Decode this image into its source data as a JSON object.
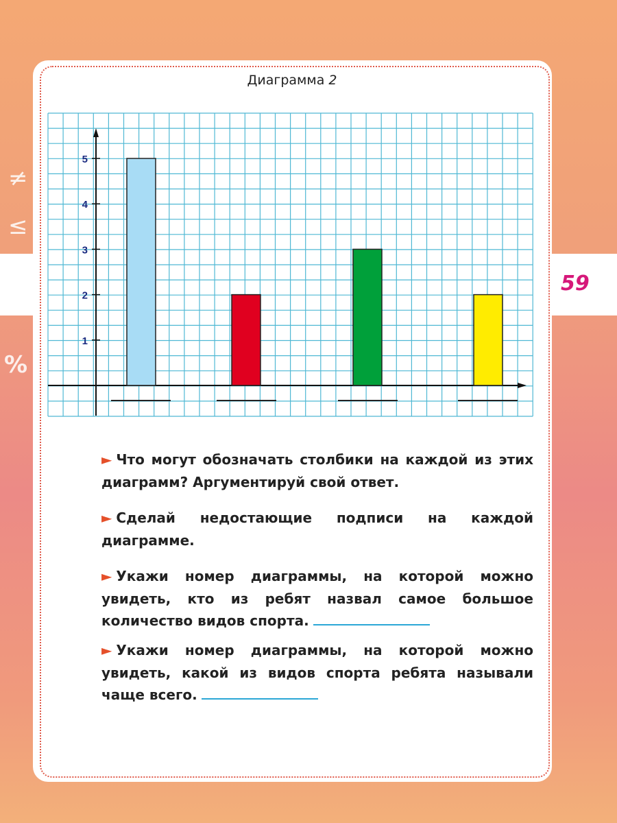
{
  "page_number": "59",
  "chart_data": {
    "type": "bar",
    "title": "Диаграмма",
    "title_number": "2",
    "categories": [
      "",
      "",
      "",
      ""
    ],
    "values": [
      5,
      2,
      3,
      2
    ],
    "colors": [
      "#a8dcf5",
      "#e0001f",
      "#00a03a",
      "#ffec00"
    ],
    "yticks": [
      "1",
      "2",
      "3",
      "4",
      "5"
    ],
    "ylim": [
      0,
      5
    ],
    "grid": true,
    "grid_color": "#4fb8d4",
    "axis_label_color": "#1a2a80"
  },
  "questions": [
    {
      "text": "Что могут обозначать столбики на каждой из этих диаграмм? Аргументируй свой ответ.",
      "has_blank": false
    },
    {
      "text": "Сделай недостающие подписи на каждой диаграмме.",
      "has_blank": false
    },
    {
      "text": "Укажи номер диаграммы, на которой можно увидеть, кто из ребят назвал самое большое количество видов спорта.",
      "has_blank": true
    },
    {
      "text": "Укажи номер диаграммы, на которой можно увидеть, какой из видов спорта ребята называли чаще всего.",
      "has_blank": true
    }
  ],
  "decorations": {
    "left_symbols": [
      "≠",
      "≤",
      "%"
    ],
    "marker": "►"
  },
  "colors": {
    "accent": "#e5502a",
    "page_number": "#d6187a",
    "blank_line": "#2aa7d6"
  }
}
